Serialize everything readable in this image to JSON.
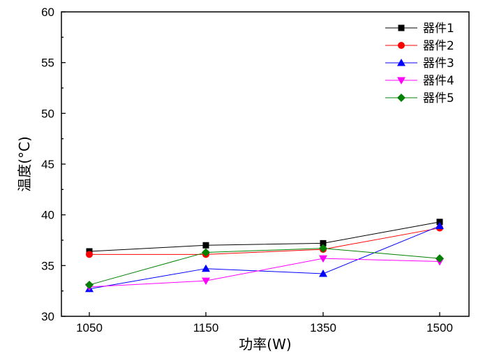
{
  "chart_data": {
    "type": "line",
    "title": "",
    "xlabel": "功率(W)",
    "ylabel": "温度(°C)",
    "categories": [
      "1050",
      "1150",
      "1350",
      "1500"
    ],
    "ylim": [
      30,
      60
    ],
    "yticks": [
      30,
      35,
      40,
      45,
      50,
      55,
      60
    ],
    "grid": false,
    "legend_position": "top-right",
    "series": [
      {
        "name": "器件1",
        "color": "#000000",
        "marker": "square",
        "values": [
          36.4,
          37.0,
          37.2,
          39.3
        ]
      },
      {
        "name": "器件2",
        "color": "#ff0000",
        "marker": "circle",
        "values": [
          36.1,
          36.1,
          36.6,
          38.7
        ]
      },
      {
        "name": "器件3",
        "color": "#0000ff",
        "marker": "triangle-up",
        "values": [
          32.7,
          34.7,
          34.2,
          38.9
        ]
      },
      {
        "name": "器件4",
        "color": "#ff00ff",
        "marker": "triangle-down",
        "values": [
          32.9,
          33.5,
          35.7,
          35.4
        ]
      },
      {
        "name": "器件5",
        "color": "#008000",
        "marker": "diamond",
        "values": [
          33.1,
          36.3,
          36.7,
          35.7
        ]
      }
    ]
  }
}
